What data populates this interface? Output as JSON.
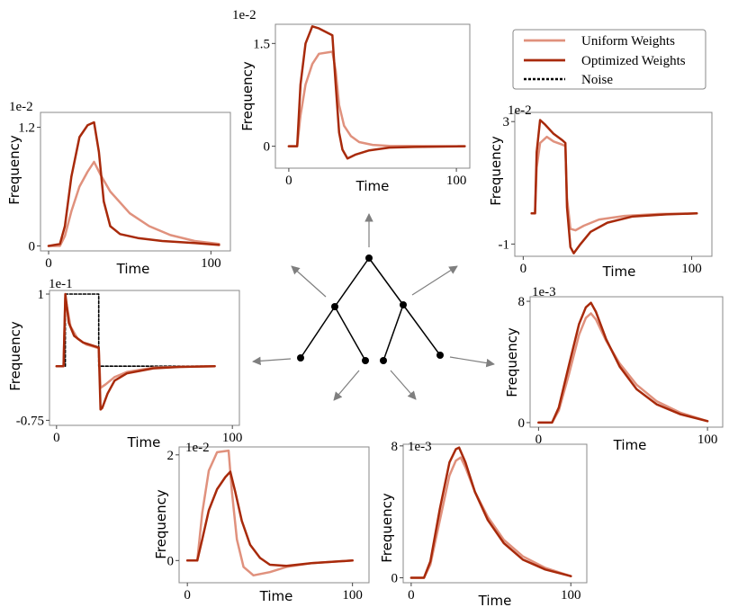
{
  "legend": {
    "entries": [
      {
        "label": "Uniform Weights",
        "color": "#e0917d",
        "style": "solid"
      },
      {
        "label": "Optimized Weights",
        "color": "#a82a0b",
        "style": "solid"
      },
      {
        "label": "Noise",
        "color": "#000000",
        "style": "dotted"
      }
    ]
  },
  "chart_data": [
    {
      "id": "top",
      "type": "line",
      "scale_label": "1e-2",
      "xlabel": "Time",
      "ylabel": "Frequency",
      "xlim": [
        -8,
        108
      ],
      "ylim": [
        -0.32,
        1.78
      ],
      "xticks": [
        {
          "v": 0,
          "t": "0"
        },
        {
          "v": 100,
          "t": "100"
        }
      ],
      "yticks": [
        {
          "v": 0,
          "t": "0"
        },
        {
          "v": 1.5,
          "t": "1.5"
        }
      ],
      "series": [
        {
          "color": "#e0917d",
          "points": [
            [
              0,
              0
            ],
            [
              5,
              0
            ],
            [
              7,
              0.45
            ],
            [
              10,
              0.9
            ],
            [
              14,
              1.2
            ],
            [
              18,
              1.35
            ],
            [
              26,
              1.38
            ],
            [
              28,
              1.1
            ],
            [
              30,
              0.6
            ],
            [
              33,
              0.3
            ],
            [
              37,
              0.15
            ],
            [
              42,
              0.06
            ],
            [
              50,
              0.02
            ],
            [
              60,
              0.005
            ],
            [
              105,
              0
            ]
          ]
        },
        {
          "color": "#a82a0b",
          "points": [
            [
              0,
              0
            ],
            [
              5,
              0
            ],
            [
              7,
              0.9
            ],
            [
              10,
              1.5
            ],
            [
              14,
              1.75
            ],
            [
              18,
              1.72
            ],
            [
              26,
              1.62
            ],
            [
              28,
              0.9
            ],
            [
              30,
              0.2
            ],
            [
              32,
              -0.05
            ],
            [
              35,
              -0.18
            ],
            [
              40,
              -0.12
            ],
            [
              48,
              -0.06
            ],
            [
              60,
              -0.02
            ],
            [
              75,
              -0.01
            ],
            [
              105,
              0
            ]
          ]
        }
      ]
    },
    {
      "id": "upper-left",
      "type": "line",
      "scale_label": "1e-2",
      "xlabel": "Time",
      "ylabel": "Frequency",
      "xlim": [
        -5,
        112
      ],
      "ylim": [
        -0.05,
        1.35
      ],
      "xticks": [
        {
          "v": 0,
          "t": "0"
        },
        {
          "v": 100,
          "t": "100"
        }
      ],
      "yticks": [
        {
          "v": 0,
          "t": "0"
        },
        {
          "v": 1.2,
          "t": "1.2"
        }
      ],
      "series": [
        {
          "color": "#e0917d",
          "points": [
            [
              0,
              0
            ],
            [
              7,
              0
            ],
            [
              10,
              0.1
            ],
            [
              14,
              0.35
            ],
            [
              19,
              0.6
            ],
            [
              24,
              0.75
            ],
            [
              28,
              0.85
            ],
            [
              32,
              0.72
            ],
            [
              38,
              0.55
            ],
            [
              50,
              0.33
            ],
            [
              62,
              0.2
            ],
            [
              75,
              0.11
            ],
            [
              90,
              0.05
            ],
            [
              105,
              0.02
            ]
          ]
        },
        {
          "color": "#a82a0b",
          "points": [
            [
              0,
              0
            ],
            [
              7,
              0.02
            ],
            [
              10,
              0.2
            ],
            [
              14,
              0.7
            ],
            [
              19,
              1.1
            ],
            [
              24,
              1.22
            ],
            [
              28,
              1.25
            ],
            [
              31,
              0.95
            ],
            [
              34,
              0.45
            ],
            [
              38,
              0.2
            ],
            [
              44,
              0.12
            ],
            [
              55,
              0.08
            ],
            [
              70,
              0.05
            ],
            [
              90,
              0.03
            ],
            [
              105,
              0.01
            ]
          ]
        }
      ]
    },
    {
      "id": "upper-right",
      "type": "line",
      "scale_label": "1e-2",
      "xlabel": "Time",
      "ylabel": "Frequency",
      "xlim": [
        -5,
        112
      ],
      "ylim": [
        -1.4,
        3.3
      ],
      "xticks": [
        {
          "v": 0,
          "t": "0"
        },
        {
          "v": 100,
          "t": "100"
        }
      ],
      "yticks": [
        {
          "v": -1,
          "t": "-1"
        },
        {
          "v": 3,
          "t": "3"
        }
      ],
      "series": [
        {
          "color": "#e0917d",
          "points": [
            [
              5,
              0
            ],
            [
              7,
              0
            ],
            [
              8,
              1.5
            ],
            [
              10,
              2.3
            ],
            [
              14,
              2.5
            ],
            [
              18,
              2.35
            ],
            [
              23,
              2.25
            ],
            [
              25,
              2.2
            ],
            [
              26,
              0.5
            ],
            [
              28,
              -0.5
            ],
            [
              31,
              -0.55
            ],
            [
              36,
              -0.4
            ],
            [
              45,
              -0.2
            ],
            [
              60,
              -0.08
            ],
            [
              80,
              -0.02
            ],
            [
              103,
              0
            ]
          ]
        },
        {
          "color": "#a82a0b",
          "points": [
            [
              5,
              0
            ],
            [
              7,
              0
            ],
            [
              8,
              2.0
            ],
            [
              10,
              3.05
            ],
            [
              13,
              2.9
            ],
            [
              18,
              2.6
            ],
            [
              23,
              2.4
            ],
            [
              25,
              2.3
            ],
            [
              26,
              0.2
            ],
            [
              28,
              -1.1
            ],
            [
              30,
              -1.3
            ],
            [
              34,
              -1.0
            ],
            [
              40,
              -0.6
            ],
            [
              50,
              -0.3
            ],
            [
              65,
              -0.1
            ],
            [
              85,
              -0.03
            ],
            [
              103,
              0
            ]
          ]
        }
      ]
    },
    {
      "id": "middle-left",
      "type": "line",
      "scale_label": "1e-1",
      "xlabel": "Time",
      "ylabel": "Frequency",
      "xlim": [
        -4,
        104
      ],
      "ylim": [
        -0.82,
        1.05
      ],
      "xticks": [
        {
          "v": 0,
          "t": "0"
        },
        {
          "v": 100,
          "t": "100"
        }
      ],
      "yticks": [
        {
          "v": -0.75,
          "t": "-0.75"
        },
        {
          "v": 1,
          "t": "1"
        }
      ],
      "series": [
        {
          "color": "#000000",
          "dashed": true,
          "points": [
            [
              5,
              0
            ],
            [
              5,
              1
            ],
            [
              24,
              1
            ],
            [
              24,
              0
            ],
            [
              90,
              0
            ]
          ]
        },
        {
          "color": "#e0917d",
          "points": [
            [
              0,
              0
            ],
            [
              4,
              0
            ],
            [
              5,
              0.95
            ],
            [
              8,
              0.55
            ],
            [
              12,
              0.38
            ],
            [
              17,
              0.3
            ],
            [
              24,
              0.25
            ],
            [
              25,
              -0.3
            ],
            [
              28,
              -0.25
            ],
            [
              33,
              -0.15
            ],
            [
              40,
              -0.08
            ],
            [
              55,
              -0.02
            ],
            [
              70,
              -0.01
            ],
            [
              90,
              0
            ]
          ]
        },
        {
          "color": "#a82a0b",
          "points": [
            [
              0,
              0
            ],
            [
              4,
              0
            ],
            [
              5,
              1.0
            ],
            [
              7,
              0.6
            ],
            [
              10,
              0.42
            ],
            [
              15,
              0.33
            ],
            [
              24,
              0.26
            ],
            [
              25,
              -0.6
            ],
            [
              26,
              -0.58
            ],
            [
              29,
              -0.38
            ],
            [
              33,
              -0.2
            ],
            [
              40,
              -0.1
            ],
            [
              55,
              -0.03
            ],
            [
              70,
              -0.01
            ],
            [
              90,
              0
            ]
          ]
        }
      ]
    },
    {
      "id": "middle-right",
      "type": "line",
      "scale_label": "1e-3",
      "xlabel": "Time",
      "ylabel": "Frequency",
      "xlim": [
        -5,
        109
      ],
      "ylim": [
        -0.3,
        8.3
      ],
      "xticks": [
        {
          "v": 0,
          "t": "0"
        },
        {
          "v": 100,
          "t": "100"
        }
      ],
      "yticks": [
        {
          "v": 0,
          "t": "0"
        },
        {
          "v": 8,
          "t": "8"
        }
      ],
      "series": [
        {
          "color": "#e0917d",
          "points": [
            [
              0,
              0
            ],
            [
              8,
              0
            ],
            [
              12,
              0.8
            ],
            [
              18,
              3.2
            ],
            [
              24,
              5.8
            ],
            [
              28,
              6.9
            ],
            [
              31,
              7.2
            ],
            [
              34,
              6.8
            ],
            [
              40,
              5.4
            ],
            [
              48,
              3.9
            ],
            [
              58,
              2.5
            ],
            [
              70,
              1.4
            ],
            [
              84,
              0.65
            ],
            [
              100,
              0.1
            ]
          ]
        },
        {
          "color": "#a82a0b",
          "points": [
            [
              0,
              0
            ],
            [
              8,
              0
            ],
            [
              12,
              1.0
            ],
            [
              18,
              3.8
            ],
            [
              24,
              6.5
            ],
            [
              28,
              7.6
            ],
            [
              31,
              7.9
            ],
            [
              34,
              7.3
            ],
            [
              40,
              5.5
            ],
            [
              48,
              3.7
            ],
            [
              58,
              2.2
            ],
            [
              70,
              1.2
            ],
            [
              84,
              0.55
            ],
            [
              100,
              0.1
            ]
          ]
        }
      ]
    },
    {
      "id": "bottom-left",
      "type": "line",
      "scale_label": "1e-2",
      "xlabel": "Time",
      "ylabel": "Frequency",
      "xlim": [
        -5,
        110
      ],
      "ylim": [
        -0.42,
        2.15
      ],
      "xticks": [
        {
          "v": 0,
          "t": "0"
        },
        {
          "v": 100,
          "t": "100"
        }
      ],
      "yticks": [
        {
          "v": 0,
          "t": "0"
        },
        {
          "v": 2,
          "t": "2"
        }
      ],
      "series": [
        {
          "color": "#e0917d",
          "points": [
            [
              0,
              0
            ],
            [
              6,
              0
            ],
            [
              9,
              0.9
            ],
            [
              13,
              1.7
            ],
            [
              18,
              2.05
            ],
            [
              25,
              2.08
            ],
            [
              27,
              1.3
            ],
            [
              30,
              0.4
            ],
            [
              34,
              -0.12
            ],
            [
              40,
              -0.28
            ],
            [
              50,
              -0.22
            ],
            [
              60,
              -0.12
            ],
            [
              75,
              -0.05
            ],
            [
              100,
              0
            ]
          ]
        },
        {
          "color": "#a82a0b",
          "points": [
            [
              0,
              0
            ],
            [
              6,
              0
            ],
            [
              9,
              0.4
            ],
            [
              13,
              0.95
            ],
            [
              18,
              1.35
            ],
            [
              23,
              1.58
            ],
            [
              26,
              1.68
            ],
            [
              29,
              1.3
            ],
            [
              33,
              0.75
            ],
            [
              38,
              0.3
            ],
            [
              44,
              0.05
            ],
            [
              50,
              -0.08
            ],
            [
              60,
              -0.1
            ],
            [
              75,
              -0.05
            ],
            [
              100,
              0
            ]
          ]
        }
      ]
    },
    {
      "id": "bottom-right",
      "type": "line",
      "scale_label": "1e-3",
      "xlabel": "Time",
      "ylabel": "Frequency",
      "xlim": [
        -5,
        110
      ],
      "ylim": [
        -0.3,
        8.1
      ],
      "xticks": [
        {
          "v": 0,
          "t": "0"
        },
        {
          "v": 100,
          "t": "100"
        }
      ],
      "yticks": [
        {
          "v": 0,
          "t": "0"
        },
        {
          "v": 8,
          "t": "8"
        }
      ],
      "series": [
        {
          "color": "#e0917d",
          "points": [
            [
              0,
              0
            ],
            [
              8,
              0
            ],
            [
              12,
              0.8
            ],
            [
              18,
              3.5
            ],
            [
              24,
              6.2
            ],
            [
              28,
              7.1
            ],
            [
              31,
              7.3
            ],
            [
              34,
              6.7
            ],
            [
              40,
              5.2
            ],
            [
              48,
              3.7
            ],
            [
              58,
              2.3
            ],
            [
              70,
              1.3
            ],
            [
              84,
              0.6
            ],
            [
              100,
              0.1
            ]
          ]
        },
        {
          "color": "#a82a0b",
          "points": [
            [
              0,
              0
            ],
            [
              8,
              0
            ],
            [
              12,
              1.0
            ],
            [
              18,
              4.2
            ],
            [
              24,
              7.0
            ],
            [
              28,
              7.8
            ],
            [
              30,
              7.9
            ],
            [
              34,
              7.0
            ],
            [
              40,
              5.2
            ],
            [
              48,
              3.5
            ],
            [
              58,
              2.1
            ],
            [
              70,
              1.1
            ],
            [
              84,
              0.5
            ],
            [
              100,
              0.1
            ]
          ]
        }
      ]
    }
  ]
}
